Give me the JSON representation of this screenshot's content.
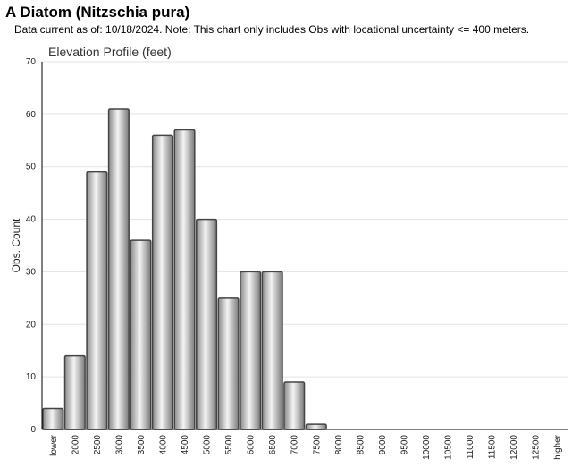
{
  "header": {
    "title": "A Diatom   (Nitzschia pura)",
    "subtitle": "Data current as of: 10/18/2024.    Note: This chart only includes Obs with locational uncertainty <= 400 meters."
  },
  "chart_data": {
    "type": "bar",
    "title": "Elevation Profile (feet)",
    "xlabel": "",
    "ylabel": "Obs. Count",
    "ylim": [
      0,
      70
    ],
    "yticks": [
      0,
      10,
      20,
      30,
      40,
      50,
      60,
      70
    ],
    "grid": true,
    "categories": [
      "lower",
      "2000",
      "2500",
      "3000",
      "3500",
      "4000",
      "4500",
      "5000",
      "5500",
      "6000",
      "6500",
      "7000",
      "7500",
      "8000",
      "8500",
      "9000",
      "9500",
      "10000",
      "10500",
      "11000",
      "11500",
      "12000",
      "12500",
      "higher"
    ],
    "values": [
      4,
      14,
      49,
      61,
      36,
      56,
      57,
      40,
      25,
      30,
      30,
      9,
      1,
      0,
      0,
      0,
      0,
      0,
      0,
      0,
      0,
      0,
      0,
      0
    ],
    "colors": {
      "bar_light": "#f2f2f2",
      "bar_dark": "#7a7a7a",
      "bar_stroke": "#444444",
      "grid": "#e3e3e3",
      "axis": "#000000"
    }
  }
}
